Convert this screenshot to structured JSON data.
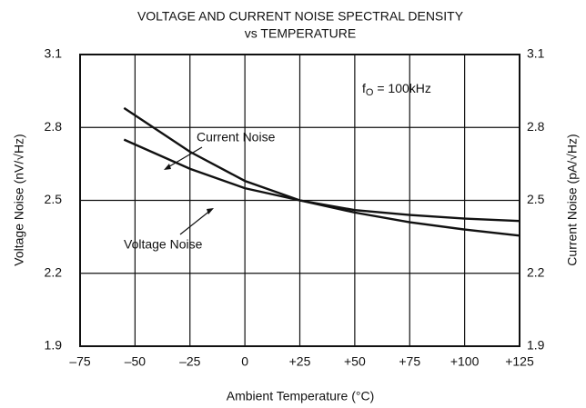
{
  "chart_data": {
    "type": "line",
    "title": [
      "VOLTAGE AND CURRENT NOISE SPECTRAL DENSITY",
      "vs TEMPERATURE"
    ],
    "x_label": "Ambient Temperature (°C)",
    "y_label": "Voltage Noise (nV/√Hz)",
    "y2_label": "Current Noise (pA/√Hz)",
    "annotation": {
      "main": "f",
      "sub": "O",
      "rest": " = 100kHz"
    },
    "x": [
      -55,
      -50,
      -25,
      0,
      25,
      50,
      75,
      100,
      125
    ],
    "series": [
      {
        "name": "Current Noise",
        "color": "#111111",
        "axis": "y2",
        "values": [
          2.88,
          2.85,
          2.7,
          2.58,
          2.5,
          2.45,
          2.41,
          2.38,
          2.355
        ]
      },
      {
        "name": "Voltage Noise",
        "color": "#111111",
        "values": [
          2.75,
          2.73,
          2.63,
          2.55,
          2.5,
          2.46,
          2.44,
          2.425,
          2.415
        ]
      }
    ],
    "xlim": [
      -75,
      125
    ],
    "xticks": [
      {
        "value": -75,
        "label": "–75"
      },
      {
        "value": -50,
        "label": "–50"
      },
      {
        "value": -25,
        "label": "–25"
      },
      0,
      {
        "value": 25,
        "label": "+25"
      },
      {
        "value": 50,
        "label": "+50"
      },
      {
        "value": 75,
        "label": "+75"
      },
      {
        "value": 100,
        "label": "+100"
      },
      {
        "value": 125,
        "label": "+125"
      }
    ],
    "ylim": [
      1.9,
      3.1
    ],
    "yticks": [
      1.9,
      2.2,
      2.5,
      2.8,
      3.1
    ],
    "y2lim": [
      1.9,
      3.1
    ],
    "y2ticks": [
      1.9,
      2.2,
      2.5,
      2.8,
      3.1
    ],
    "grid": true
  }
}
